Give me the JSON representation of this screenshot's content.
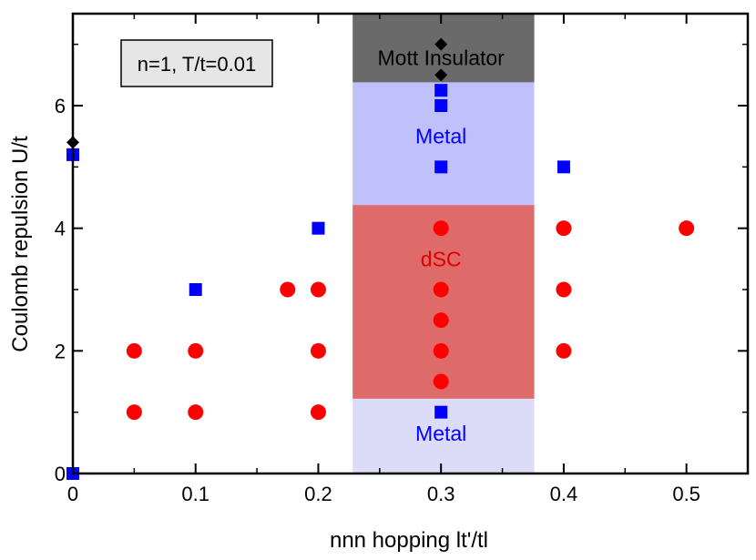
{
  "chart_data": {
    "type": "scatter",
    "title": "",
    "xlabel": "nnn hopping lt'/tl",
    "ylabel": "Coulomb repulsion U/t",
    "xlim": [
      0,
      0.55
    ],
    "ylim": [
      0,
      7.5
    ],
    "xticks": [
      0,
      0.1,
      0.2,
      0.3,
      0.4,
      0.5
    ],
    "xtick_labels": [
      "0",
      "0.1",
      "0.2",
      "0.3",
      "0.4",
      "0.5"
    ],
    "yticks": [
      0,
      2,
      4,
      6
    ],
    "ytick_labels": [
      "0",
      "2",
      "4",
      "6"
    ],
    "grid": false,
    "annotation_box": "n=1, T/t=0.01",
    "regions": [
      {
        "label": "Metal",
        "x_range": [
          0.228,
          0.376
        ],
        "y_range": [
          0,
          1.22
        ],
        "color": "#dcdcf8",
        "label_color": "#0000ff",
        "label_at": [
          0.3,
          0.65
        ]
      },
      {
        "label": "dSC",
        "x_range": [
          0.228,
          0.376
        ],
        "y_range": [
          1.22,
          4.38
        ],
        "color": "#de6a6a",
        "label_color": "#e00000",
        "label_at": [
          0.3,
          3.5
        ]
      },
      {
        "label": "Metal",
        "x_range": [
          0.228,
          0.376
        ],
        "y_range": [
          4.38,
          6.38
        ],
        "color": "#c0c0fa",
        "label_color": "#0000ff",
        "label_at": [
          0.3,
          5.5
        ]
      },
      {
        "label": "Mott Insulator",
        "x_range": [
          0.228,
          0.376
        ],
        "y_range": [
          6.38,
          7.5
        ],
        "color": "#6a6a6a",
        "label_color": "#000000",
        "label_at": [
          0.3,
          6.78
        ]
      }
    ],
    "series": [
      {
        "name": "dSC",
        "marker": "circle",
        "color": "#ff0000",
        "points": [
          [
            0.05,
            1
          ],
          [
            0.05,
            2
          ],
          [
            0.1,
            1
          ],
          [
            0.1,
            2
          ],
          [
            0.175,
            3
          ],
          [
            0.2,
            1
          ],
          [
            0.2,
            2
          ],
          [
            0.2,
            3
          ],
          [
            0.3,
            1.5
          ],
          [
            0.3,
            2
          ],
          [
            0.3,
            2.5
          ],
          [
            0.3,
            3
          ],
          [
            0.3,
            4
          ],
          [
            0.4,
            2
          ],
          [
            0.4,
            3
          ],
          [
            0.4,
            4
          ],
          [
            0.5,
            4
          ]
        ]
      },
      {
        "name": "Metal",
        "marker": "square",
        "color": "#0000ff",
        "points": [
          [
            0,
            0
          ],
          [
            0,
            5.2
          ],
          [
            0.1,
            3
          ],
          [
            0.2,
            4
          ],
          [
            0.3,
            1
          ],
          [
            0.3,
            5
          ],
          [
            0.3,
            6
          ],
          [
            0.3,
            6.25
          ],
          [
            0.4,
            5
          ]
        ]
      },
      {
        "name": "Mott Insulator",
        "marker": "diamond",
        "color": "#000000",
        "points": [
          [
            0,
            5.4
          ],
          [
            0.3,
            6.5
          ],
          [
            0.3,
            7
          ]
        ]
      }
    ]
  }
}
